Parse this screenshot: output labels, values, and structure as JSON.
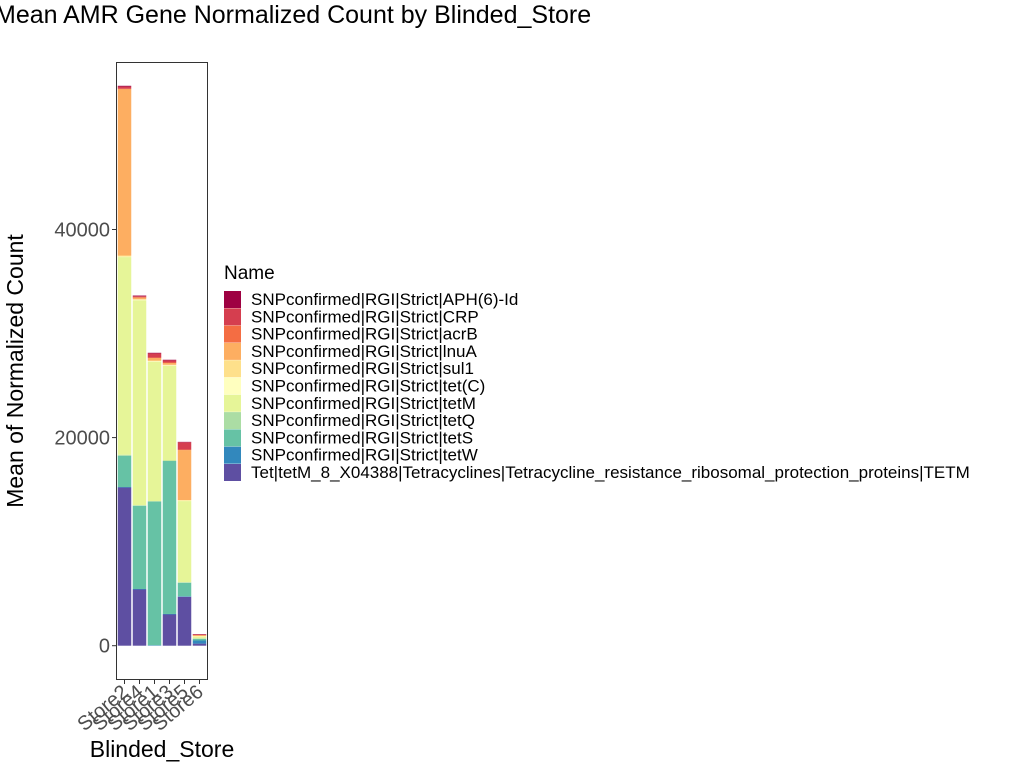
{
  "chart_data": {
    "type": "bar",
    "stacked": true,
    "title": "Mean AMR Gene Normalized Count by Blinded_Store",
    "xlabel": "Blinded_Store",
    "ylabel": "Mean of Normalized Count",
    "ylim": [
      -3200,
      56000
    ],
    "yticks": [
      0,
      20000,
      40000
    ],
    "y_tick_labels": [
      "0",
      "20000",
      "40000"
    ],
    "grid": false,
    "legend_title": "Name",
    "legend_position": "right",
    "categories": [
      "Store2",
      "Store4",
      "Store1",
      "Store3",
      "Store5",
      "Store6"
    ],
    "series": [
      {
        "name": "SNPconfirmed|RGI|Strict|APH(6)-Id",
        "color": "#9e0142",
        "values": [
          80,
          60,
          60,
          60,
          40,
          20
        ]
      },
      {
        "name": "SNPconfirmed|RGI|Strict|CRP",
        "color": "#d53e4f",
        "values": [
          200,
          100,
          400,
          200,
          700,
          40
        ]
      },
      {
        "name": "SNPconfirmed|RGI|Strict|acrB",
        "color": "#f46d43",
        "values": [
          30,
          20,
          40,
          50,
          50,
          20
        ]
      },
      {
        "name": "SNPconfirmed|RGI|Strict|lnuA",
        "color": "#fdae61",
        "values": [
          16000,
          170,
          250,
          170,
          4800,
          90
        ]
      },
      {
        "name": "SNPconfirmed|RGI|Strict|sul1",
        "color": "#fee08b",
        "values": [
          100,
          50,
          50,
          50,
          50,
          50
        ]
      },
      {
        "name": "SNPconfirmed|RGI|Strict|tet(C)",
        "color": "#ffffbf",
        "values": [
          50,
          50,
          50,
          50,
          50,
          30
        ]
      },
      {
        "name": "SNPconfirmed|RGI|Strict|tetM",
        "color": "#e6f598",
        "values": [
          19000,
          19700,
          13400,
          9100,
          7800,
          150
        ]
      },
      {
        "name": "SNPconfirmed|RGI|Strict|tetQ",
        "color": "#abdda4",
        "values": [
          100,
          50,
          50,
          50,
          50,
          60
        ]
      },
      {
        "name": "SNPconfirmed|RGI|Strict|tetS",
        "color": "#66c2a5",
        "values": [
          3000,
          8000,
          13800,
          14700,
          1300,
          150
        ]
      },
      {
        "name": "SNPconfirmed|RGI|Strict|tetW",
        "color": "#3288bd",
        "values": [
          50,
          50,
          50,
          50,
          50,
          300
        ]
      },
      {
        "name": "Tet|tetM_8_X04388|Tetracyclines|Tetracycline_resistance_ribosomal_protection_proteins|TETM",
        "color": "#5e4fa2",
        "values": [
          15200,
          5400,
          0,
          3000,
          4700,
          200
        ]
      }
    ]
  }
}
